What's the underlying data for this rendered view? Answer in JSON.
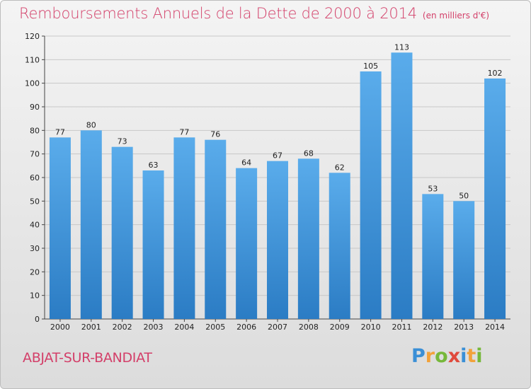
{
  "title": "Remboursements Annuels de la Dette de 2000 à 2014",
  "unit": "(en milliers d'€)",
  "commune": "ABJAT-SUR-BANDIAT",
  "logo": "Proxiti",
  "colors": {
    "title": "#d33f69",
    "bar_light": "#5aaceb",
    "bar_dark": "#2b7cc4",
    "grid": "#c8c8c8"
  },
  "chart_data": {
    "type": "bar",
    "categories": [
      "2000",
      "2001",
      "2002",
      "2003",
      "2004",
      "2005",
      "2006",
      "2007",
      "2008",
      "2009",
      "2010",
      "2011",
      "2012",
      "2013",
      "2014"
    ],
    "values": [
      77,
      80,
      73,
      63,
      77,
      76,
      64,
      67,
      68,
      62,
      105,
      113,
      53,
      50,
      102
    ],
    "ylim": [
      0,
      120
    ],
    "yticks": [
      0,
      10,
      20,
      30,
      40,
      50,
      60,
      70,
      80,
      90,
      100,
      110,
      120
    ],
    "grid": true,
    "xlabel": "",
    "ylabel": ""
  }
}
